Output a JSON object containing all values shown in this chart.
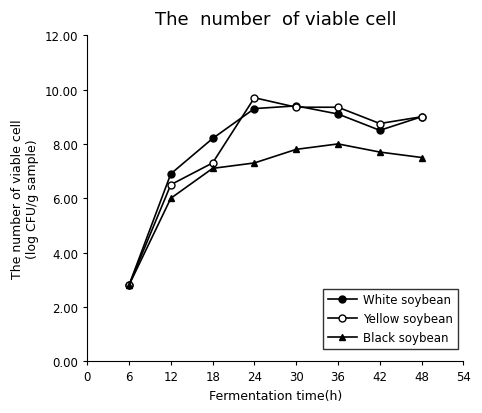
{
  "title": "The  number  of viable cell",
  "xlabel": "Fermentation time(h)",
  "ylabel_line1": "The number of viable cell",
  "ylabel_line2": "(log CFU/g sample)",
  "x": [
    6,
    12,
    18,
    24,
    30,
    36,
    42,
    48
  ],
  "white_soybean": [
    2.8,
    6.9,
    8.2,
    9.3,
    9.4,
    9.1,
    8.5,
    9.0
  ],
  "yellow_soybean": [
    2.8,
    6.5,
    7.3,
    9.7,
    9.35,
    9.35,
    8.75,
    9.0
  ],
  "black_soybean": [
    2.8,
    6.0,
    7.1,
    7.3,
    7.8,
    8.0,
    7.7,
    7.5
  ],
  "ylim": [
    0.0,
    12.0
  ],
  "xlim": [
    0,
    54
  ],
  "xticks": [
    0,
    6,
    12,
    18,
    24,
    30,
    36,
    42,
    48,
    54
  ],
  "yticks": [
    0.0,
    2.0,
    4.0,
    6.0,
    8.0,
    10.0,
    12.0
  ],
  "title_fontsize": 13,
  "label_fontsize": 9,
  "tick_fontsize": 8.5,
  "legend_fontsize": 8.5
}
